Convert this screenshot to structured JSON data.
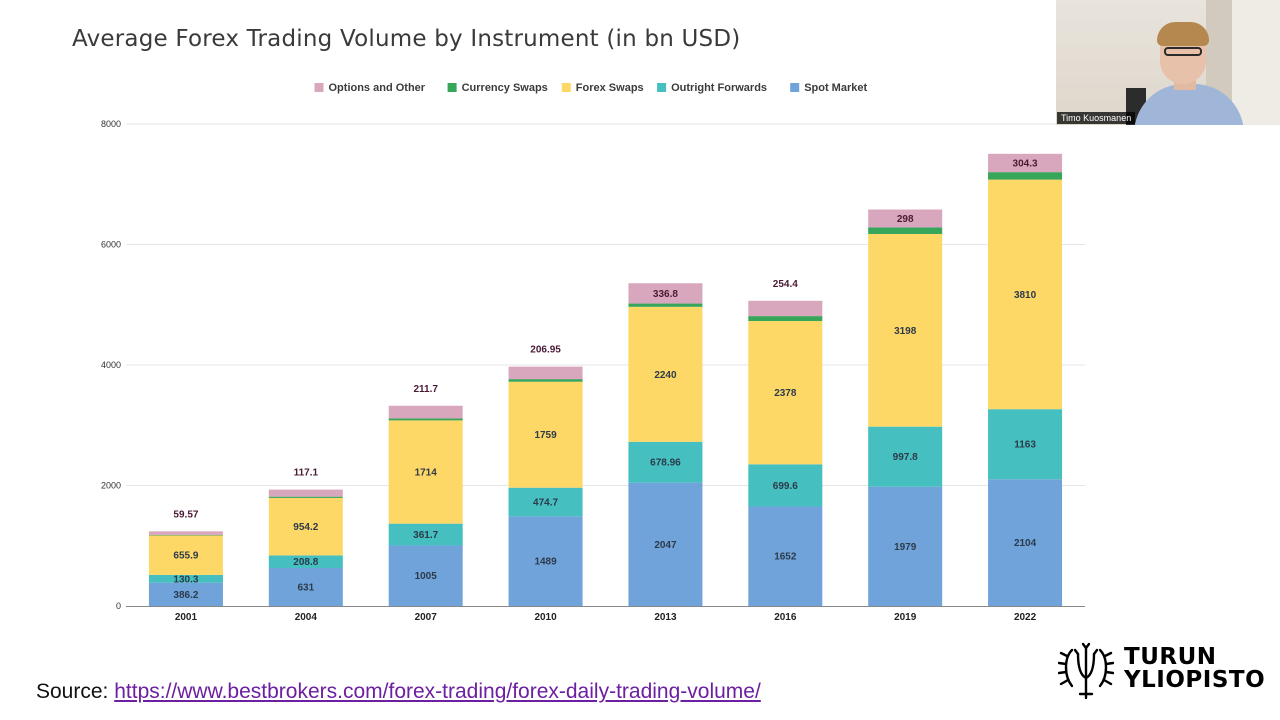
{
  "slide": {
    "title": "Average Forex Trading Volume by Instrument (in bn USD)",
    "source_label": "Source:",
    "source_url": "https://www.bestbrokers.com/forex-trading/forex-daily-trading-volume/"
  },
  "webcam": {
    "participant_name": "Timo Kuosmanen"
  },
  "logo": {
    "line1": "TURUN",
    "line2": "YLIOPISTO"
  },
  "colors": {
    "spot": "#6fa3da",
    "outright": "#45bfbf",
    "fxswaps": "#fdd866",
    "currency": "#37a55a",
    "options": "#d9a7bd",
    "grid": "#e6e6e6",
    "axis": "#888888"
  },
  "chart_data": {
    "type": "bar",
    "stacked": true,
    "title": "Average Forex Trading Volume by Instrument (in bn USD)",
    "categories": [
      "2001",
      "2004",
      "2007",
      "2010",
      "2013",
      "2016",
      "2019",
      "2022"
    ],
    "ylim": [
      0,
      8000
    ],
    "yticks": [
      "0",
      "2000",
      "4000",
      "6000",
      "8000"
    ],
    "grid": true,
    "legend_position": "top",
    "legend_order": [
      "Options and Other",
      "Currency Swaps",
      "Forex Swaps",
      "Outright Forwards",
      "Spot Market"
    ],
    "series": [
      {
        "name": "Spot Market",
        "color": "#6fa3da",
        "values": [
          386.2,
          631,
          1005,
          1489,
          2047,
          1652,
          1979,
          2104
        ],
        "labels": [
          "386.2",
          "631",
          "1005",
          "1489",
          "2047",
          "1652",
          "1979",
          "2104"
        ]
      },
      {
        "name": "Outright Forwards",
        "color": "#45bfbf",
        "values": [
          130.3,
          208.8,
          361.7,
          474.7,
          678.96,
          699.6,
          997.8,
          1163
        ],
        "labels": [
          "130.3",
          "208.8",
          "361.7",
          "474.7",
          "678.96",
          "699.6",
          "997.8",
          "1163"
        ]
      },
      {
        "name": "Forex Swaps",
        "color": "#fdd866",
        "values": [
          655.9,
          954.2,
          1714,
          1759,
          2240,
          2378,
          3198,
          3810
        ],
        "labels": [
          "655.9",
          "954.2",
          "1714",
          "1759",
          "2240",
          "2378",
          "3198",
          "3810"
        ]
      },
      {
        "name": "Currency Swaps",
        "color": "#37a55a",
        "values": [
          7,
          21,
          31,
          43,
          54,
          82,
          108,
          124
        ],
        "labels": [
          "",
          "",
          "",
          "",
          "",
          "",
          "",
          ""
        ]
      },
      {
        "name": "Options and Other",
        "color": "#d9a7bd",
        "values": [
          59.57,
          117.1,
          211.7,
          206.95,
          336.8,
          254.4,
          298,
          304.3
        ],
        "labels": [
          "59.57",
          "117.1",
          "211.7",
          "206.95",
          "336.8",
          "254.4",
          "298",
          "304.3"
        ]
      }
    ]
  }
}
